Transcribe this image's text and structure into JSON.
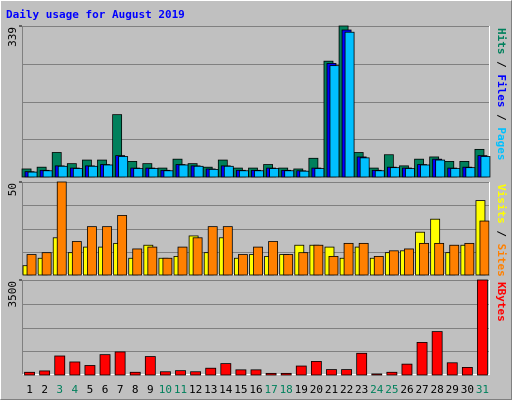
{
  "chart_data": [
    {
      "type": "bar",
      "title": "Daily usage for August 2019",
      "title_color": "#0000ff",
      "ylim": [
        0,
        339
      ],
      "yticks": [
        339
      ],
      "legend_separator": " / ",
      "series": [
        {
          "name": "Hits",
          "color": "#00805c",
          "values": [
            18,
            22,
            55,
            30,
            38,
            38,
            140,
            35,
            30,
            20,
            40,
            30,
            22,
            38,
            20,
            20,
            28,
            20,
            18,
            42,
            260,
            339,
            55,
            20,
            50,
            25,
            40,
            45,
            35,
            35,
            62
          ]
        },
        {
          "name": "Files",
          "color": "#0000ff",
          "values": [
            12,
            15,
            25,
            20,
            25,
            28,
            48,
            20,
            20,
            15,
            28,
            25,
            18,
            25,
            15,
            15,
            20,
            15,
            14,
            20,
            255,
            330,
            45,
            15,
            22,
            20,
            28,
            40,
            20,
            22,
            48
          ]
        },
        {
          "name": "Pages",
          "color": "#00c0ff",
          "values": [
            11,
            14,
            24,
            19,
            24,
            27,
            46,
            19,
            19,
            14,
            27,
            24,
            17,
            24,
            14,
            14,
            19,
            14,
            13,
            19,
            250,
            325,
            43,
            14,
            21,
            19,
            27,
            38,
            19,
            21,
            46
          ]
        }
      ]
    },
    {
      "type": "bar",
      "ylim": [
        0,
        50
      ],
      "yticks": [
        50
      ],
      "legend_separator": " / ",
      "series": [
        {
          "name": "Visits",
          "color": "#ffff00",
          "values": [
            5,
            9,
            20,
            12,
            15,
            15,
            17,
            9,
            16,
            9,
            10,
            21,
            12,
            20,
            9,
            11,
            10,
            11,
            16,
            16,
            15,
            9,
            15,
            9,
            12,
            13,
            23,
            30,
            12,
            16,
            40
          ]
        },
        {
          "name": "Sites",
          "color": "#ff8000",
          "values": [
            11,
            12,
            50,
            18,
            26,
            26,
            32,
            14,
            15,
            9,
            15,
            20,
            26,
            26,
            11,
            15,
            18,
            11,
            12,
            16,
            10,
            17,
            17,
            10,
            13,
            14,
            17,
            17,
            16,
            17,
            29
          ]
        }
      ]
    },
    {
      "type": "bar",
      "ylim": [
        0,
        3500
      ],
      "yticks": [
        3500
      ],
      "categories": [
        "1",
        "2",
        "3",
        "4",
        "5",
        "6",
        "7",
        "8",
        "9",
        "10",
        "11",
        "12",
        "13",
        "14",
        "15",
        "16",
        "17",
        "18",
        "19",
        "20",
        "21",
        "22",
        "23",
        "24",
        "25",
        "26",
        "27",
        "28",
        "29",
        "30",
        "31"
      ],
      "category_colors": [
        "#000000",
        "#000000",
        "#00805c",
        "#00805c",
        "#000000",
        "#000000",
        "#000000",
        "#000000",
        "#000000",
        "#00805c",
        "#00805c",
        "#000000",
        "#000000",
        "#000000",
        "#000000",
        "#000000",
        "#00805c",
        "#00805c",
        "#000000",
        "#000000",
        "#000000",
        "#000000",
        "#000000",
        "#00805c",
        "#00805c",
        "#000000",
        "#000000",
        "#000000",
        "#000000",
        "#000000",
        "#00805c"
      ],
      "series": [
        {
          "name": "KBytes",
          "color": "#ff0000",
          "values": [
            100,
            150,
            700,
            480,
            350,
            750,
            850,
            100,
            680,
            120,
            160,
            120,
            250,
            420,
            190,
            190,
            60,
            60,
            330,
            500,
            200,
            200,
            800,
            40,
            100,
            400,
            1200,
            1600,
            450,
            280,
            3500
          ]
        }
      ]
    }
  ]
}
